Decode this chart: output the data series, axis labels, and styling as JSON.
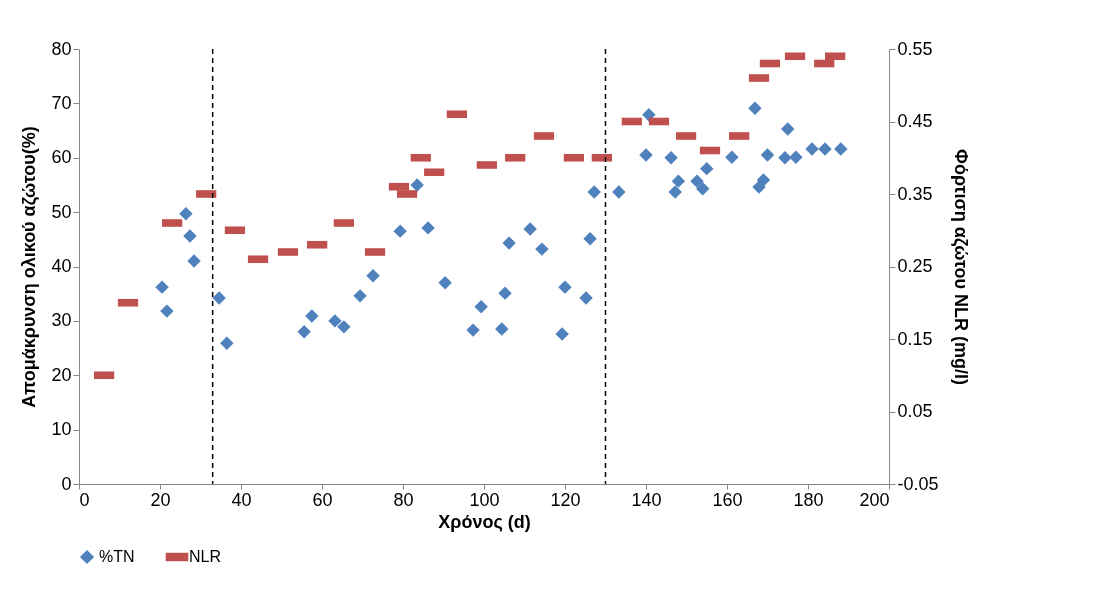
{
  "chart_data": {
    "type": "scatter",
    "xlabel": "Χρόνος (d)",
    "ylabel": "Απομάκρυνση ολικού αζώτου(%)",
    "y2label": "Φόρτιση αζώτου NLR (mg/l)",
    "xlim": [
      0,
      200
    ],
    "xticks": [
      0,
      20,
      40,
      60,
      80,
      100,
      120,
      140,
      160,
      180,
      200
    ],
    "ylim": [
      0,
      80
    ],
    "yticks": [
      0,
      10,
      20,
      30,
      40,
      50,
      60,
      70,
      80
    ],
    "y2lim": [
      -0.05,
      0.55
    ],
    "y2ticks": [
      -0.05,
      0.05,
      0.15,
      0.25,
      0.35,
      0.45,
      0.55
    ],
    "legend": "bottom",
    "grid": false,
    "ref_lines": [
      {
        "axis": "x",
        "value": 33,
        "line_style": "dashed",
        "color": "#000000"
      },
      {
        "axis": "x",
        "value": 130,
        "line_style": "dashed",
        "color": "#000000"
      }
    ],
    "series": [
      {
        "name": "%TN",
        "color": "#4f81bd",
        "marker": "diamond",
        "x": [
          20.5,
          21.7,
          26.4,
          27.4,
          28.4,
          34.6,
          36.5,
          55.6,
          57.5,
          63.2,
          65.4,
          69.4,
          72.6,
          79.3,
          83.5,
          86.2,
          90.4,
          97.3,
          99.3,
          104.4,
          105.2,
          106.2,
          111.4,
          114.3,
          119.3,
          120,
          125.2,
          126.2,
          127.2,
          128,
          133.3,
          140,
          140.7,
          146.2,
          147.2,
          148,
          152.6,
          154,
          155,
          161.2,
          166.9,
          167.9,
          169,
          170,
          174.3,
          175,
          177,
          181,
          183.5,
          184.2,
          188.1
        ],
        "values": [
          36.2,
          31.8,
          49.7,
          45.6,
          41,
          34.2,
          25.9,
          28,
          30.9,
          30,
          28.9,
          34.6,
          38.3,
          46.5,
          55,
          47.1,
          37,
          28.3,
          32.6,
          28.5,
          35.1,
          44.3,
          46.9,
          43.2,
          27.6,
          36.2,
          34.2,
          45.1,
          53.7,
          null,
          53.7,
          60.5,
          67.9,
          60,
          53.7,
          55.7,
          55.7,
          54.3,
          58,
          60.1,
          69.1,
          54.6,
          55.9,
          60.5,
          60,
          65.3,
          60.1,
          61.6,
          null,
          61.6,
          61.6
        ]
      },
      {
        "name": "NLR",
        "color": "#c0504d",
        "marker": "square",
        "axis": "y2",
        "x": [
          6.2,
          12.1,
          23,
          31.4,
          38.5,
          44.2,
          51.6,
          58.8,
          65.4,
          73.1,
          79,
          81,
          84.4,
          87.7,
          93.3,
          100.7,
          107.7,
          114.8,
          122.2,
          129.1,
          136.5,
          143.2,
          149.9,
          155.8,
          163,
          167.9,
          170.6,
          176.8,
          184,
          186.7
        ],
        "values": [
          0.1,
          0.2,
          0.31,
          0.35,
          0.3,
          0.26,
          0.27,
          0.28,
          0.31,
          0.27,
          0.36,
          0.35,
          0.4,
          0.38,
          0.46,
          0.39,
          0.4,
          0.43,
          0.4,
          0.4,
          0.45,
          0.45,
          0.43,
          0.41,
          0.43,
          0.51,
          0.53,
          0.54,
          0.53,
          0.54
        ]
      }
    ]
  }
}
